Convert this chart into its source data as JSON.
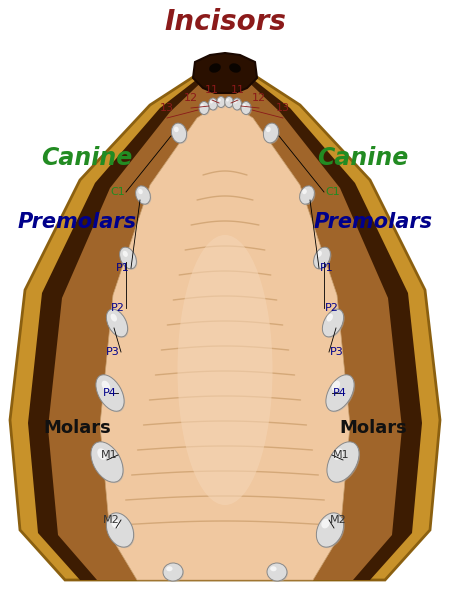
{
  "title": "Incisors",
  "title_color": "#8B1A1A",
  "title_fontsize": 20,
  "bg_color": "#ffffff",
  "label_canine_left": "Canine",
  "label_canine_right": "Canine",
  "label_canine_color": "#228B22",
  "label_canine_fontsize": 17,
  "label_premolars_left": "Premolars",
  "label_premolars_right": "Premolars",
  "label_premolars_color": "#00008B",
  "label_premolars_fontsize": 15,
  "label_molars_left": "Molars",
  "label_molars_right": "Molars",
  "label_molars_color": "#111111",
  "label_molars_fontsize": 13,
  "incisor_label_color": "#8B1A1A",
  "incisor_label_fontsize": 8,
  "tooth_label_color_c": "#228B22",
  "tooth_label_color_p": "#00008B",
  "tooth_label_color_m": "#333333",
  "tooth_label_fontsize": 8,
  "outer_jaw_color": "#C8922A",
  "outer_jaw_edge": "#8B6010",
  "inner_jaw_dark": "#3D1C02",
  "inner_jaw_mid": "#A0652A",
  "palate_color": "#F0C8A0",
  "palate_ridges_color": "#D4A878",
  "tooth_fill": "#DCDCDC",
  "tooth_outline": "#888888",
  "tooth_shadow": "#B0B0B0"
}
